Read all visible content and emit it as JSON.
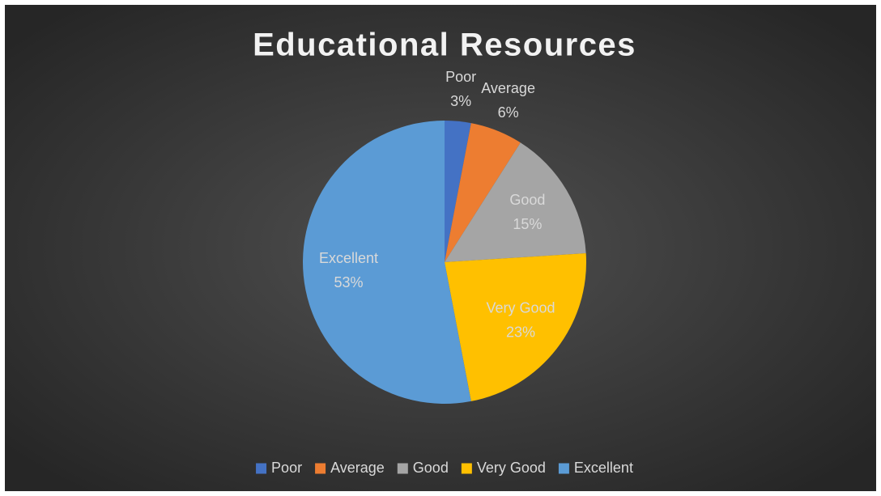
{
  "chart_data": {
    "type": "pie",
    "title": "Educational Resources",
    "categories": [
      "Poor",
      "Average",
      "Good",
      "Very Good",
      "Excellent"
    ],
    "values": [
      3,
      6,
      15,
      23,
      53
    ],
    "value_labels": [
      "3%",
      "6%",
      "15%",
      "23%",
      "53%"
    ],
    "colors": [
      "#4472c4",
      "#ed7d31",
      "#a5a5a5",
      "#ffc000",
      "#5b9bd5"
    ],
    "legend": "bottom"
  }
}
